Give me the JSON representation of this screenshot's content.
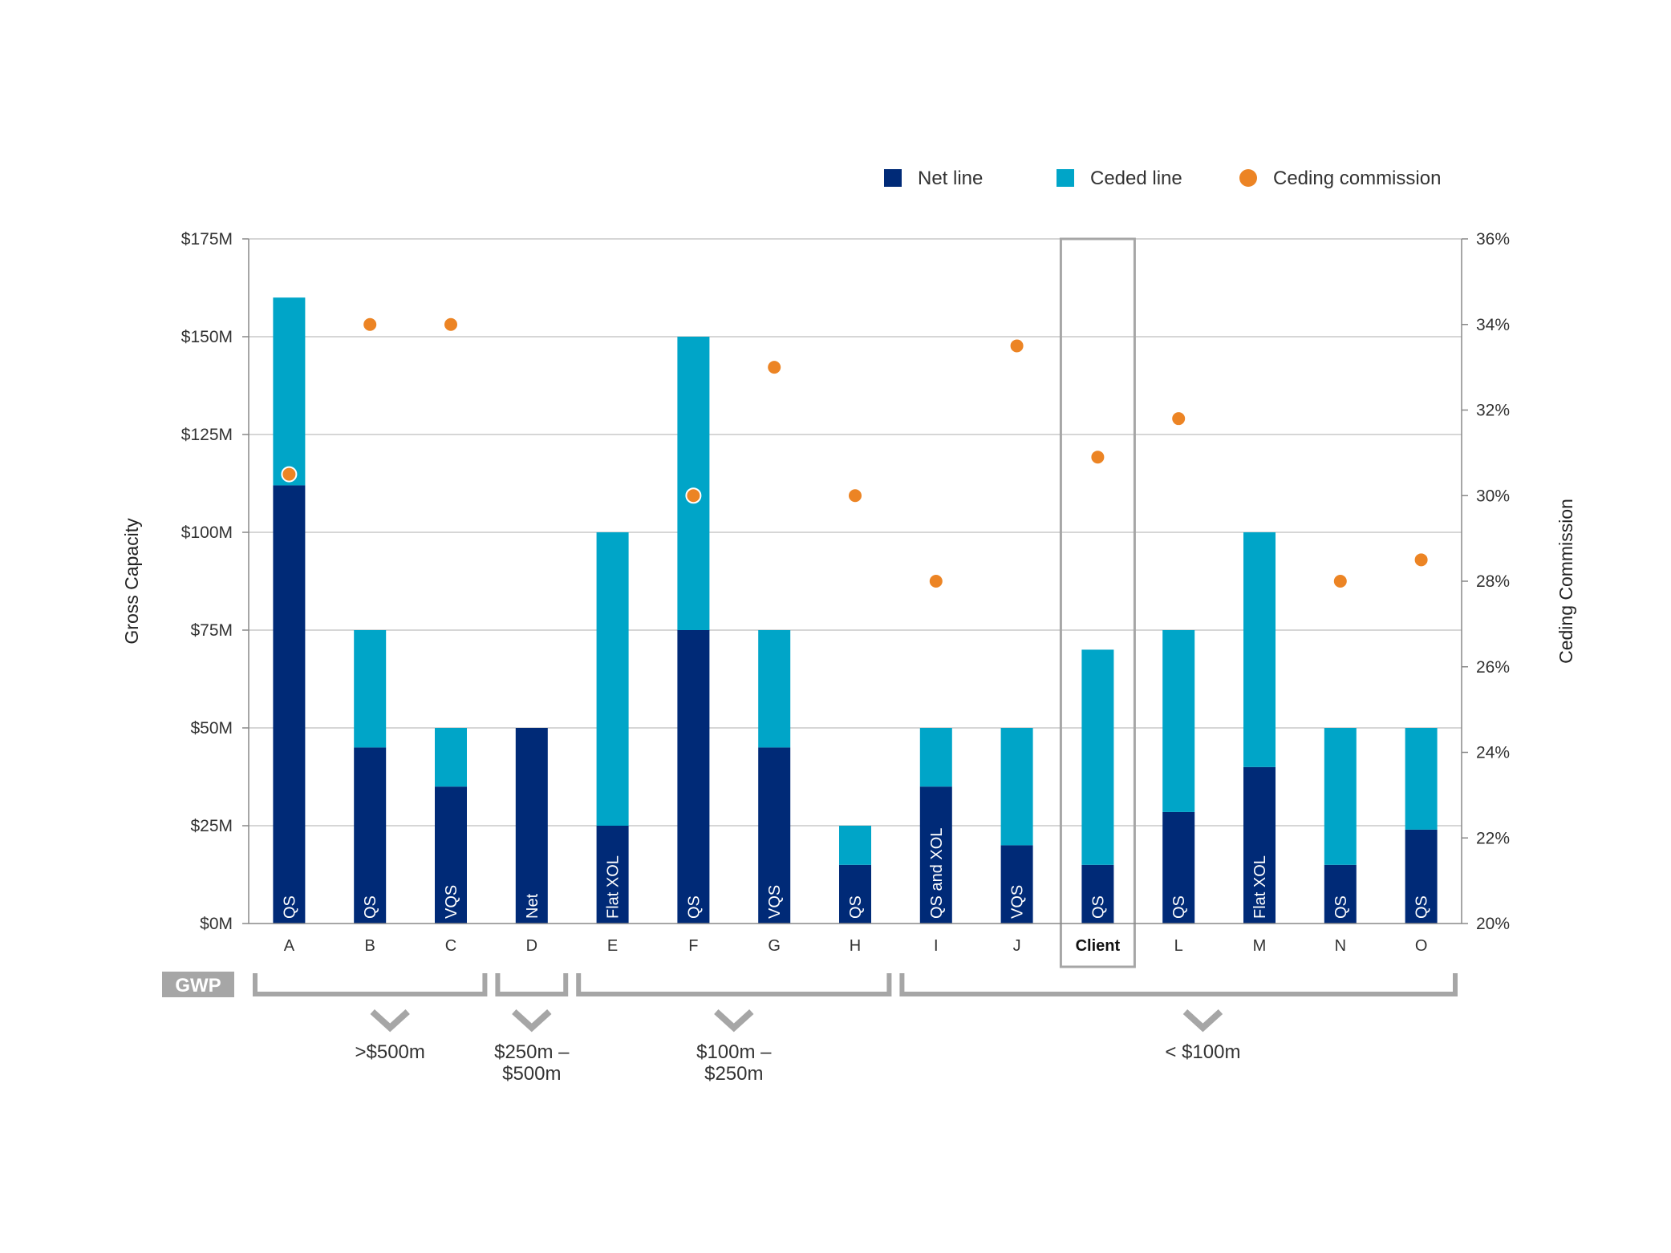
{
  "chart_data": {
    "type": "bar",
    "stacked": true,
    "categories": [
      "A",
      "B",
      "C",
      "D",
      "E",
      "F",
      "G",
      "H",
      "I",
      "J",
      "Client",
      "L",
      "M",
      "N",
      "O"
    ],
    "highlighted_category": "Client",
    "series": [
      {
        "name": "Net line",
        "type": "bar",
        "axis": "left",
        "color": "#002a77",
        "values": [
          112,
          45,
          35,
          50,
          25,
          75,
          45,
          15,
          35,
          20,
          15,
          28.5,
          40,
          15,
          24
        ]
      },
      {
        "name": "Ceded line",
        "type": "bar",
        "axis": "left",
        "color": "#00a5c8",
        "values": [
          48,
          30,
          15,
          0,
          75,
          75,
          30,
          10,
          15,
          30,
          55,
          46.5,
          60,
          35,
          26
        ]
      },
      {
        "name": "Ceding commission",
        "type": "scatter",
        "axis": "right",
        "color": "#ec8424",
        "values": [
          30.5,
          34,
          34,
          null,
          null,
          30,
          33,
          30,
          28,
          33.5,
          30.9,
          31.8,
          null,
          28,
          28.5
        ]
      }
    ],
    "bar_labels": [
      "QS",
      "QS",
      "VQS",
      "Net",
      "Flat XOL",
      "QS",
      "VQS",
      "QS",
      "QS and XOL",
      "VQS",
      "QS",
      "QS",
      "Flat XOL",
      "QS",
      "QS"
    ],
    "ylabel": "Gross Capacity",
    "ylim": [
      0,
      175
    ],
    "y_ticks": [
      "$0M",
      "$25M",
      "$50M",
      "$75M",
      "$100M",
      "$125M",
      "$150M",
      "$175M"
    ],
    "y2label": "Ceding Commission",
    "y2lim": [
      20,
      36
    ],
    "y2_ticks": [
      "20%",
      "22%",
      "24%",
      "26%",
      "28%",
      "30%",
      "32%",
      "34%",
      "36%"
    ],
    "grid": true,
    "legend_position": "top-right",
    "gwp_label": "GWP",
    "groups": [
      {
        "label": ">$500m",
        "categories": [
          "A",
          "B",
          "C"
        ]
      },
      {
        "label": "$250m –\n$500m",
        "categories": [
          "D"
        ]
      },
      {
        "label": "$100m –\n$250m",
        "categories": [
          "E",
          "F",
          "G",
          "H"
        ]
      },
      {
        "label": "< $100m",
        "categories": [
          "I",
          "J",
          "Client",
          "L",
          "M",
          "N",
          "O"
        ]
      }
    ]
  }
}
